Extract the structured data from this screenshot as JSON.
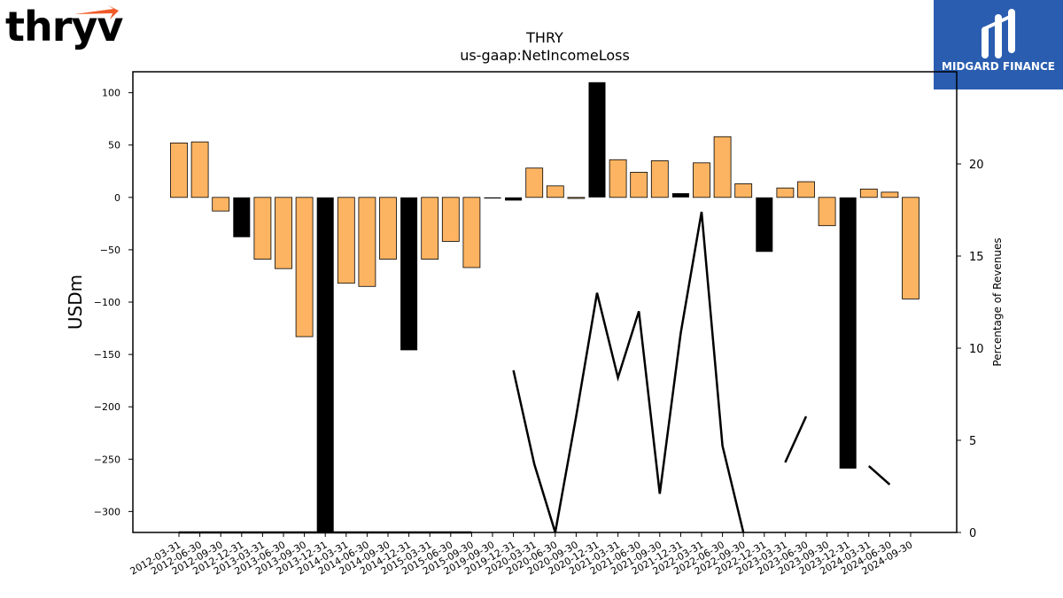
{
  "brand": {
    "left_logo": "thryv",
    "right_logo": "MIDGARD FINANCE"
  },
  "chart_data": {
    "type": "bar",
    "title": "THRY",
    "subtitle": "us-gaap:NetIncomeLoss",
    "ylabel": "USDm",
    "y2label": "Percentage of Revenues",
    "ylim": [
      -320,
      120
    ],
    "y2lim": [
      0,
      25
    ],
    "yticks": [
      100,
      50,
      0,
      -50,
      -100,
      -150,
      -200,
      -250,
      -300
    ],
    "y2ticks": [
      0,
      5,
      10,
      15,
      20
    ],
    "colors": {
      "quarter": "#fdb462",
      "annual": "#000000",
      "line": "#000000"
    },
    "categories": [
      "2012-03-31",
      "2012-06-30",
      "2012-09-30",
      "2012-12-31",
      "2013-03-31",
      "2013-06-30",
      "2013-09-30",
      "2013-12-31",
      "2014-03-31",
      "2014-06-30",
      "2014-09-30",
      "2014-12-31",
      "2015-03-31",
      "2015-06-30",
      "2015-09-30",
      "2019-09-30",
      "2019-12-31",
      "2020-03-31",
      "2020-06-30",
      "2020-09-30",
      "2020-12-31",
      "2021-03-31",
      "2021-06-30",
      "2021-09-30",
      "2021-12-31",
      "2022-03-31",
      "2022-06-30",
      "2022-09-30",
      "2022-12-31",
      "2023-03-31",
      "2023-06-30",
      "2023-09-30",
      "2023-12-31",
      "2024-03-31",
      "2024-06-30",
      "2024-09-30"
    ],
    "values": [
      52,
      53,
      -13,
      -38,
      -59,
      -68,
      -133,
      -320,
      -82,
      -85,
      -59,
      -146,
      -59,
      -42,
      -67,
      -1,
      -3,
      28,
      11,
      -1,
      110,
      36,
      24,
      35,
      4,
      33,
      58,
      13,
      -52,
      9,
      15,
      -27,
      -259,
      8,
      5,
      -97
    ],
    "is_annual": [
      false,
      false,
      false,
      true,
      false,
      false,
      false,
      true,
      false,
      false,
      false,
      true,
      false,
      false,
      false,
      true,
      true,
      false,
      false,
      false,
      true,
      false,
      false,
      false,
      true,
      false,
      false,
      false,
      true,
      false,
      false,
      false,
      true,
      false,
      false,
      false
    ],
    "pct_of_revenues": [
      0,
      0,
      0,
      0,
      0,
      0,
      0,
      0,
      0,
      0,
      0,
      0,
      0,
      0,
      0,
      0,
      8.8,
      3.7,
      0,
      6.3,
      13,
      8.4,
      12,
      2.1,
      10.8,
      17.4,
      4.7,
      0,
      0,
      3.8,
      6.3,
      0,
      0,
      3.6,
      2.6,
      0
    ],
    "pct_visible": [
      true,
      true,
      true,
      true,
      true,
      true,
      true,
      true,
      true,
      true,
      true,
      true,
      true,
      true,
      true,
      false,
      true,
      true,
      true,
      true,
      true,
      true,
      true,
      true,
      true,
      true,
      true,
      true,
      false,
      true,
      true,
      false,
      false,
      true,
      true,
      false
    ]
  }
}
